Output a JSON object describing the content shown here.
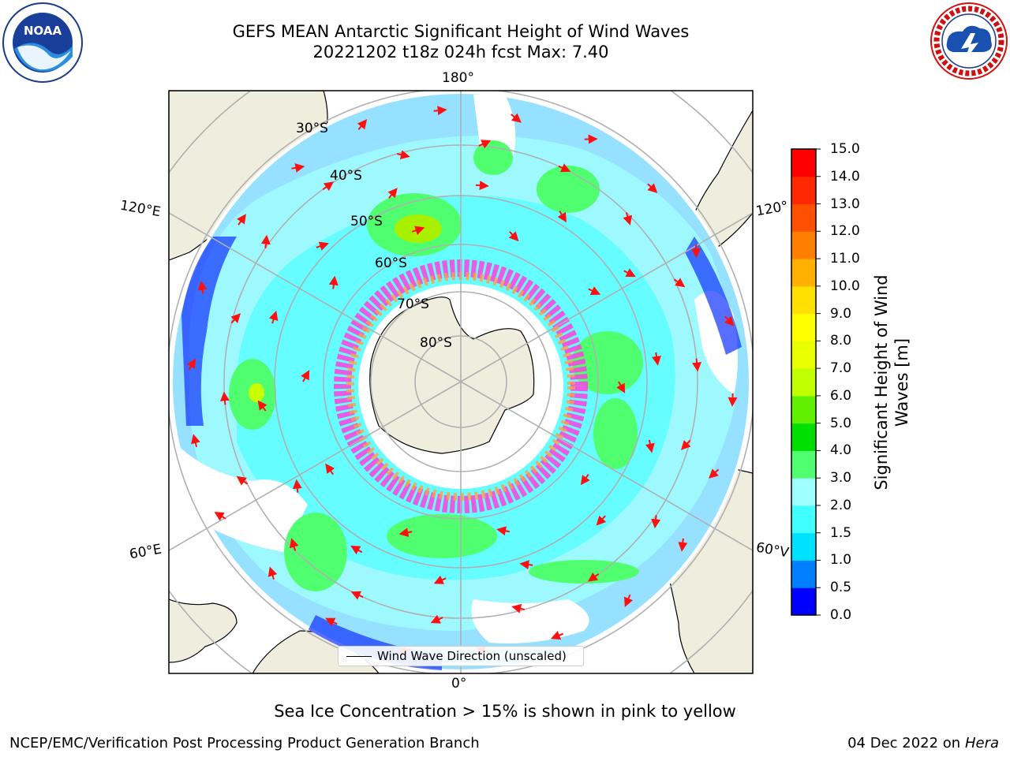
{
  "header": {
    "title_line1": "GEFS MEAN Antarctic Significant Height of Wind Waves",
    "title_line2": "20221202 t18z 024h fcst   Max: 7.40"
  },
  "logos": {
    "left": {
      "icon": "noaa-logo-icon",
      "text": "NOAA"
    },
    "right": {
      "icon": "nws-logo-icon"
    }
  },
  "map": {
    "projection": "south-polar-stereographic",
    "longitude_labels": {
      "top": "180°",
      "left": "120°E",
      "right": "120°",
      "lower_left": "60°E",
      "lower_right": "60°V",
      "bottom": "0°"
    },
    "latitude_labels": [
      "30°S",
      "40°S",
      "50°S",
      "60°S",
      "70°S",
      "80°S"
    ],
    "legend": {
      "label": "Wind Wave Direction (unscaled)"
    },
    "colors": {
      "land": "#efedde",
      "ocean_none": "#ffffff",
      "arrow": "#ff1010",
      "gridline": "#b0b0b0"
    }
  },
  "colorbar": {
    "label": "Significant Height of Wind Waves [m]",
    "ticks": [
      "0.0",
      "0.5",
      "1.0",
      "1.5",
      "2.0",
      "3.0",
      "4.0",
      "5.0",
      "6.0",
      "7.0",
      "8.0",
      "9.0",
      "10.0",
      "11.0",
      "12.0",
      "13.0",
      "14.0",
      "15.0"
    ],
    "colors": [
      "#0000ff",
      "#0080ff",
      "#00e0ff",
      "#40ffff",
      "#a0ffff",
      "#50ff70",
      "#00e000",
      "#60f000",
      "#c0ff00",
      "#e8ff00",
      "#ffff00",
      "#ffe000",
      "#ffb000",
      "#ff8000",
      "#ff5000",
      "#ff2800",
      "#ff0000"
    ]
  },
  "chart_data": {
    "type": "heatmap",
    "title": "GEFS MEAN Antarctic Significant Height of Wind Waves",
    "subtitle": "20221202 t18z 024h fcst   Max: 7.40",
    "variable": "Significant Height of Wind Waves [m]",
    "max_value": 7.4,
    "scale_min": 0.0,
    "scale_max": 15.0
  },
  "footer": {
    "note": "Sea Ice Concentration > 15% is shown in pink to yellow",
    "left": "NCEP/EMC/Verification Post Processing Product Generation Branch",
    "right_date": "04 Dec 2022 on",
    "right_machine": "Hera"
  }
}
